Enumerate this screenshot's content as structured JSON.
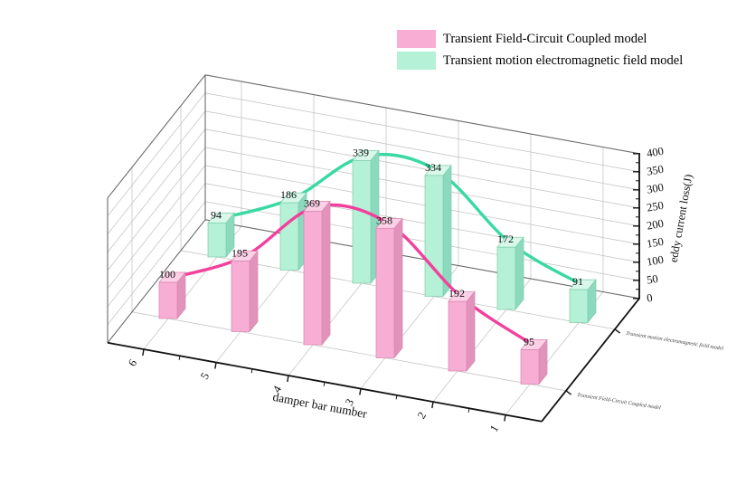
{
  "chart_data": {
    "type": "bar",
    "projection": "3d",
    "title": "",
    "categories": [
      "6",
      "5",
      "4",
      "3",
      "2",
      "1"
    ],
    "xlabel": "damper bar number",
    "zlabel": "eddy current loss(J)",
    "zlim": [
      0,
      400
    ],
    "zticks": [
      "0",
      "50",
      "100",
      "150",
      "200",
      "250",
      "300",
      "350",
      "400"
    ],
    "grid": true,
    "legend_position": "top-right",
    "series": [
      {
        "name": "Transient Field-Circuit Coupled model",
        "row": "front",
        "values": [
          100,
          195,
          369,
          358,
          192,
          95
        ],
        "bar_color": "#f8aed4",
        "bar_side_color": "#e293bc",
        "bar_top_color": "#fcd0e6",
        "bar_edge_color": "#d687ae",
        "line_color": "#f2409c"
      },
      {
        "name": "Transient motion electromagnetic field model",
        "row": "back",
        "values": [
          94,
          186,
          339,
          334,
          172,
          91
        ],
        "bar_color": "#b4f1d7",
        "bar_side_color": "#8cdabe",
        "bar_top_color": "#d7f8ea",
        "bar_edge_color": "#7fcbab",
        "line_color": "#38d9a2"
      }
    ],
    "depth_axis_labels": [
      "Transient Field-Circuit Coupled model",
      "Transient motion electromagnetic field model"
    ]
  },
  "legend": {
    "items": [
      {
        "label": "Transient Field-Circuit Coupled model"
      },
      {
        "label": "Transient motion electromagnetic field model"
      }
    ]
  }
}
